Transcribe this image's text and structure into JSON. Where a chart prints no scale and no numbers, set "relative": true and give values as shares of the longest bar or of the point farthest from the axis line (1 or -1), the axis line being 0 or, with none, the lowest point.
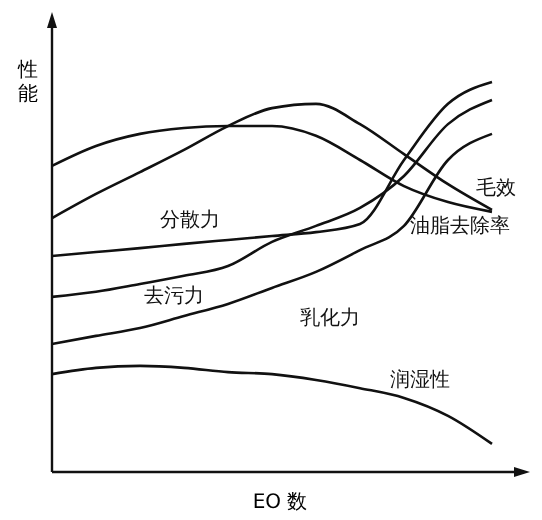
{
  "chart_data": {
    "type": "line",
    "relative": true,
    "ylabel": "性能",
    "xlabel": "EO 数",
    "marker": "none",
    "line_style": "solid",
    "categories": [
      null,
      null,
      null,
      null,
      null,
      null,
      null,
      null,
      null,
      null,
      null
    ],
    "series": [
      {
        "name": "分散力",
        "color": "#111111",
        "values": [
          0.554,
          0.564,
          0.574,
          0.585,
          0.595,
          0.605,
          0.615,
          0.636,
          0.8,
          0.944,
          1.0
        ]
      },
      {
        "name": "去污力",
        "color": "#111111",
        "values": [
          0.449,
          0.462,
          0.482,
          0.503,
          0.528,
          0.59,
          0.631,
          0.677,
          0.759,
          0.892,
          0.954
        ]
      },
      {
        "name": "乳化力",
        "color": "#111111",
        "values": [
          0.328,
          0.349,
          0.369,
          0.4,
          0.431,
          0.472,
          0.513,
          0.569,
          0.631,
          0.8,
          0.867
        ]
      },
      {
        "name": "润湿性",
        "color": "#111111",
        "values": [
          0.251,
          0.267,
          0.272,
          0.267,
          0.256,
          0.251,
          0.236,
          0.215,
          0.19,
          0.144,
          0.072
        ]
      },
      {
        "name": "毛效",
        "color": "#111111",
        "values": [
          0.651,
          0.713,
          0.769,
          0.826,
          0.887,
          0.933,
          0.944,
          0.892,
          0.815,
          0.738,
          0.672
        ]
      },
      {
        "name": "油脂去除率",
        "color": "#111111",
        "values": [
          0.785,
          0.836,
          0.867,
          0.882,
          0.887,
          0.887,
          0.862,
          0.8,
          0.733,
          0.692,
          0.667
        ]
      }
    ]
  }
}
